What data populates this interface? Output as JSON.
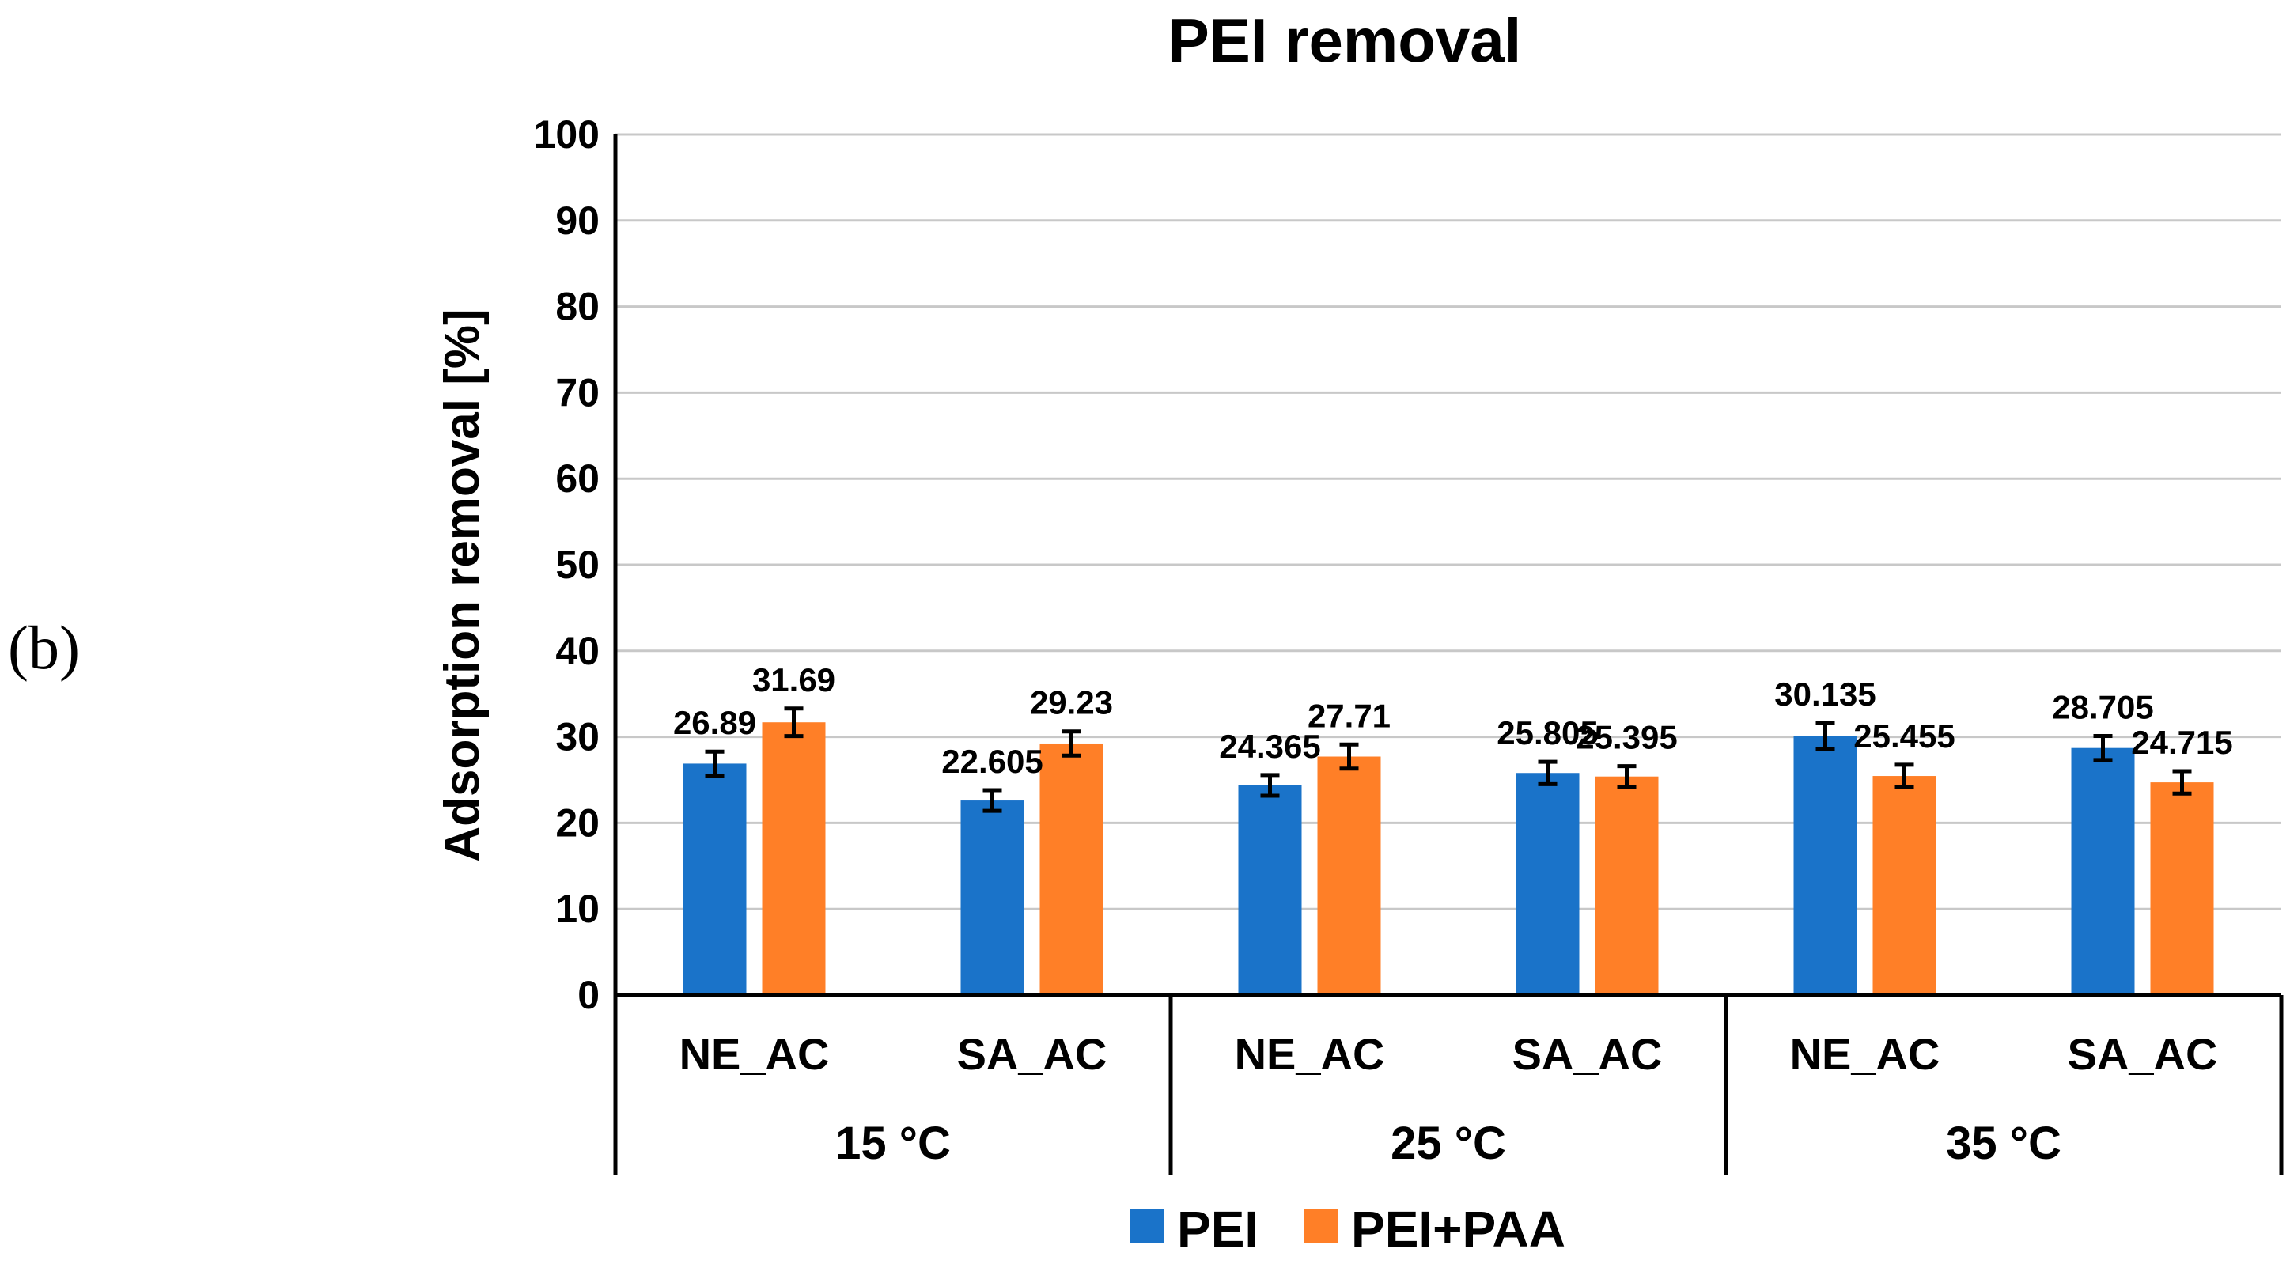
{
  "panel_label": "(b)",
  "chart_data": {
    "type": "bar",
    "title": "PEI removal",
    "ylabel": "Adsorption removal [%]",
    "xlabel": "",
    "ylim": [
      0,
      100
    ],
    "yticks": [
      0,
      10,
      20,
      30,
      40,
      50,
      60,
      70,
      80,
      90,
      100
    ],
    "grid": true,
    "legend_position": "bottom",
    "groups": [
      {
        "label": "15 °C",
        "categories": [
          "NE_AC",
          "SA_AC"
        ]
      },
      {
        "label": "25 °C",
        "categories": [
          "NE_AC",
          "SA_AC"
        ]
      },
      {
        "label": "35 °C",
        "categories": [
          "NE_AC",
          "SA_AC"
        ]
      }
    ],
    "series": [
      {
        "name": "PEI",
        "color": "#1a73c9",
        "values": [
          26.89,
          22.605,
          24.365,
          25.805,
          30.135,
          28.705
        ],
        "labels": [
          "26.89",
          "22.605",
          "24.365",
          "25.805",
          "30.135",
          "28.705"
        ],
        "errors": [
          1.4,
          1.2,
          1.2,
          1.3,
          1.5,
          1.4
        ]
      },
      {
        "name": "PEI+PAA",
        "color": "#ff7f27",
        "values": [
          31.69,
          29.23,
          27.71,
          25.395,
          25.455,
          24.715
        ],
        "labels": [
          "31.69",
          "29.23",
          "27.71",
          "25.395",
          "25.455",
          "24.715"
        ],
        "errors": [
          1.6,
          1.4,
          1.4,
          1.2,
          1.3,
          1.3
        ]
      }
    ]
  }
}
